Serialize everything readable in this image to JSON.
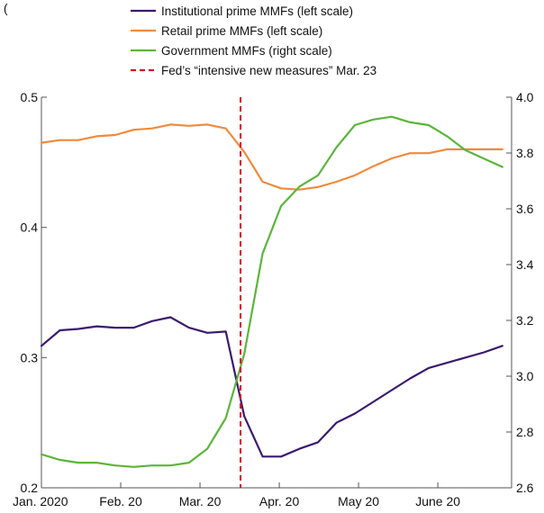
{
  "header_text": "(",
  "chart_data": {
    "type": "line",
    "title": "",
    "xlabel": "",
    "ylabel": "",
    "x_tick_labels": [
      "Jan. 2020",
      "Feb. 20",
      "Mar. 20",
      "Apr. 20",
      "May 20",
      "June 20"
    ],
    "x_range": [
      0,
      25.5
    ],
    "left_axis": {
      "range": [
        0.2,
        0.5
      ],
      "ticks": [
        0.2,
        0.3,
        0.4,
        0.5
      ],
      "labels": [
        "0.2",
        "0.3",
        "0.4",
        "0.5"
      ]
    },
    "right_axis": {
      "range": [
        2.6,
        4.0
      ],
      "ticks": [
        2.6,
        2.8,
        3.0,
        3.2,
        3.4,
        3.6,
        3.8,
        4.0
      ],
      "labels": [
        "2.6",
        "2.8",
        "3.0",
        "3.2",
        "3.4",
        "3.6",
        "3.8",
        "4.0"
      ]
    },
    "legend_position": "top",
    "series": [
      {
        "name": "Institutional prime MMFs (left scale)",
        "axis": "left",
        "color": "#3b1a6e",
        "x": [
          0,
          1,
          2,
          3,
          4,
          5,
          6,
          7,
          8,
          9,
          10,
          11,
          12,
          13,
          14,
          15,
          16,
          17,
          18,
          19,
          20,
          21,
          22,
          23,
          24,
          25
        ],
        "values": [
          0.309,
          0.321,
          0.322,
          0.324,
          0.323,
          0.323,
          0.328,
          0.331,
          0.323,
          0.319,
          0.32,
          0.255,
          0.224,
          0.224,
          0.23,
          0.235,
          0.25,
          0.257,
          0.266,
          0.275,
          0.284,
          0.292,
          0.296,
          0.3,
          0.304,
          0.309
        ]
      },
      {
        "name": "Retail prime MMFs (left scale)",
        "axis": "left",
        "color": "#f08a3c",
        "x": [
          0,
          1,
          2,
          3,
          4,
          5,
          6,
          7,
          8,
          9,
          10,
          11,
          12,
          13,
          14,
          15,
          16,
          17,
          18,
          19,
          20,
          21,
          22,
          23,
          24,
          25
        ],
        "values": [
          0.465,
          0.467,
          0.467,
          0.47,
          0.471,
          0.475,
          0.476,
          0.479,
          0.478,
          0.479,
          0.476,
          0.458,
          0.435,
          0.43,
          0.429,
          0.431,
          0.435,
          0.44,
          0.447,
          0.453,
          0.457,
          0.457,
          0.46,
          0.46,
          0.46,
          0.46
        ]
      },
      {
        "name": "Government MMFs (right scale)",
        "axis": "right",
        "color": "#5bb53a",
        "x": [
          0,
          1,
          2,
          3,
          4,
          5,
          6,
          7,
          8,
          9,
          10,
          11,
          12,
          13,
          14,
          15,
          16,
          17,
          18,
          19,
          20,
          21,
          22,
          23,
          24,
          25
        ],
        "values": [
          2.72,
          2.7,
          2.69,
          2.69,
          2.68,
          2.675,
          2.68,
          2.68,
          2.69,
          2.74,
          2.85,
          3.08,
          3.44,
          3.61,
          3.68,
          3.72,
          3.82,
          3.9,
          3.92,
          3.93,
          3.91,
          3.9,
          3.86,
          3.81,
          3.78,
          3.75
        ]
      }
    ],
    "annotations": [
      {
        "type": "vline",
        "x": 10.8,
        "label": "Fed’s “intensive new measures” Mar. 23",
        "color": "#d0142a",
        "style": "dashed"
      }
    ]
  }
}
